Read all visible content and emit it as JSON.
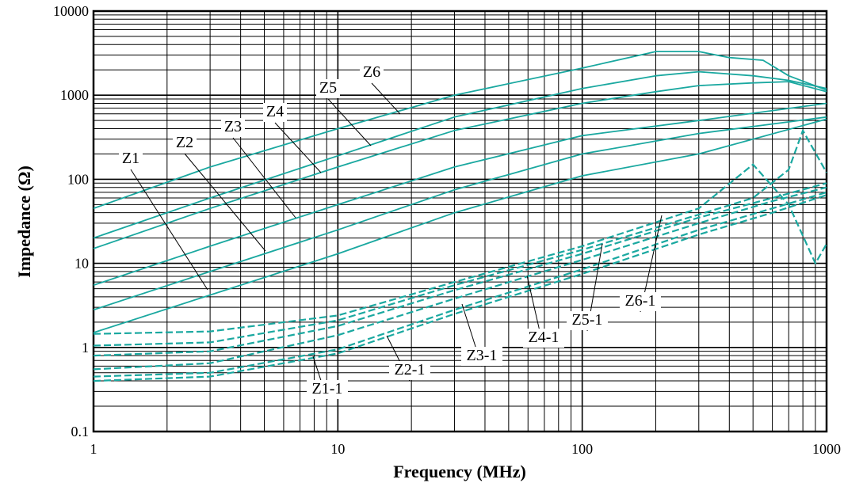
{
  "chart_data": {
    "type": "line",
    "title": "",
    "xlabel": "Frequency (MHz)",
    "ylabel": "Impedance (Ω)",
    "xscale": "log",
    "yscale": "log",
    "xlim": [
      1,
      1000
    ],
    "ylim": [
      0.1,
      10000
    ],
    "grid": true,
    "line_color": "#1aa8a0",
    "x_ticks": [
      {
        "value": 1,
        "label": "1"
      },
      {
        "value": 10,
        "label": "10"
      },
      {
        "value": 100,
        "label": "100"
      },
      {
        "value": 1000,
        "label": "1000"
      }
    ],
    "y_ticks": [
      {
        "value": 0.1,
        "label": "0.1"
      },
      {
        "value": 1,
        "label": "1"
      },
      {
        "value": 10,
        "label": "10"
      },
      {
        "value": 100,
        "label": "100"
      },
      {
        "value": 1000,
        "label": "1000"
      },
      {
        "value": 10000,
        "label": "10000"
      }
    ],
    "series": [
      {
        "name": "Z1",
        "style": "solid",
        "x": [
          1,
          3,
          10,
          30,
          100,
          300,
          1000
        ],
        "y": [
          1.5,
          4.2,
          13,
          40,
          110,
          200,
          520
        ]
      },
      {
        "name": "Z2",
        "style": "solid",
        "x": [
          1,
          3,
          10,
          30,
          100,
          300,
          1000
        ],
        "y": [
          2.8,
          8,
          25,
          75,
          200,
          350,
          550
        ]
      },
      {
        "name": "Z3",
        "style": "solid",
        "x": [
          1,
          3,
          10,
          30,
          100,
          300,
          1000
        ],
        "y": [
          5.5,
          16,
          50,
          140,
          330,
          500,
          800
        ]
      },
      {
        "name": "Z4",
        "style": "solid",
        "x": [
          1,
          3,
          10,
          30,
          100,
          200,
          300,
          500,
          700,
          1000
        ],
        "y": [
          15,
          45,
          140,
          380,
          800,
          1100,
          1300,
          1400,
          1450,
          1100
        ]
      },
      {
        "name": "Z5",
        "style": "solid",
        "x": [
          1,
          3,
          10,
          30,
          100,
          200,
          300,
          500,
          700,
          1000
        ],
        "y": [
          20,
          60,
          190,
          550,
          1200,
          1700,
          1900,
          1700,
          1500,
          1200
        ]
      },
      {
        "name": "Z6",
        "style": "solid",
        "x": [
          1,
          3,
          10,
          30,
          100,
          200,
          300,
          400,
          550,
          700,
          1000
        ],
        "y": [
          45,
          140,
          400,
          1000,
          2100,
          3300,
          3300,
          2800,
          2600,
          1700,
          1150
        ]
      },
      {
        "name": "Z1-1",
        "style": "dashed",
        "x": [
          1,
          3,
          10,
          30,
          100,
          300,
          600,
          1000
        ],
        "y": [
          0.4,
          0.45,
          0.85,
          2.5,
          7.5,
          22,
          40,
          65
        ]
      },
      {
        "name": "Z2-1",
        "style": "dashed",
        "x": [
          1,
          3,
          10,
          30,
          100,
          300,
          600,
          1000
        ],
        "y": [
          0.45,
          0.5,
          0.95,
          2.8,
          8.5,
          25,
          45,
          70
        ]
      },
      {
        "name": "Z3-1",
        "style": "dashed",
        "x": [
          1,
          3,
          10,
          30,
          100,
          300,
          600,
          1000
        ],
        "y": [
          0.55,
          0.65,
          1.4,
          3.8,
          11,
          30,
          55,
          80
        ]
      },
      {
        "name": "Z4-1",
        "style": "dashed",
        "x": [
          1,
          3,
          10,
          30,
          100,
          300,
          600,
          1000
        ],
        "y": [
          0.8,
          0.9,
          1.8,
          4.8,
          13,
          35,
          60,
          90
        ]
      },
      {
        "name": "Z5-1",
        "style": "dashed",
        "x": [
          1,
          3,
          10,
          30,
          100,
          300,
          500,
          700,
          800,
          1000
        ],
        "y": [
          1.05,
          1.15,
          2.1,
          5.5,
          14.5,
          38,
          60,
          130,
          380,
          120
        ]
      },
      {
        "name": "Z6-1",
        "style": "dashed",
        "x": [
          1,
          3,
          10,
          30,
          100,
          300,
          500,
          700,
          900,
          1000
        ],
        "y": [
          1.45,
          1.55,
          2.4,
          6,
          16,
          45,
          150,
          50,
          10,
          17
        ]
      }
    ],
    "annotations": [
      {
        "text": "Z1"
      },
      {
        "text": "Z2"
      },
      {
        "text": "Z3"
      },
      {
        "text": "Z4"
      },
      {
        "text": "Z5"
      },
      {
        "text": "Z6"
      },
      {
        "text": "Z1-1"
      },
      {
        "text": "Z2-1"
      },
      {
        "text": "Z3-1"
      },
      {
        "text": "Z4-1"
      },
      {
        "text": "Z5-1"
      },
      {
        "text": "Z6-1"
      }
    ]
  }
}
